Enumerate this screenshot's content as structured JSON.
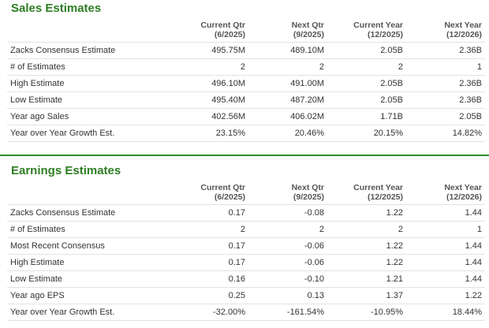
{
  "sales": {
    "title": "Sales Estimates",
    "columns": [
      {
        "line1": "Current Qtr",
        "line2": "(6/2025)"
      },
      {
        "line1": "Next Qtr",
        "line2": "(9/2025)"
      },
      {
        "line1": "Current Year",
        "line2": "(12/2025)"
      },
      {
        "line1": "Next Year",
        "line2": "(12/2026)"
      }
    ],
    "rows": [
      {
        "label": "Zacks Consensus Estimate",
        "values": [
          "495.75M",
          "489.10M",
          "2.05B",
          "2.36B"
        ]
      },
      {
        "label": "# of Estimates",
        "values": [
          "2",
          "2",
          "2",
          "1"
        ]
      },
      {
        "label": "High Estimate",
        "values": [
          "496.10M",
          "491.00M",
          "2.05B",
          "2.36B"
        ]
      },
      {
        "label": "Low Estimate",
        "values": [
          "495.40M",
          "487.20M",
          "2.05B",
          "2.36B"
        ]
      },
      {
        "label": "Year ago Sales",
        "values": [
          "402.56M",
          "406.02M",
          "1.71B",
          "2.05B"
        ]
      },
      {
        "label": "Year over Year Growth Est.",
        "values": [
          "23.15%",
          "20.46%",
          "20.15%",
          "14.82%"
        ]
      }
    ]
  },
  "earnings": {
    "title": "Earnings Estimates",
    "columns": [
      {
        "line1": "Current Qtr",
        "line2": "(6/2025)"
      },
      {
        "line1": "Next Qtr",
        "line2": "(9/2025)"
      },
      {
        "line1": "Current Year",
        "line2": "(12/2025)"
      },
      {
        "line1": "Next Year",
        "line2": "(12/2026)"
      }
    ],
    "rows": [
      {
        "label": "Zacks Consensus Estimate",
        "values": [
          "0.17",
          "-0.08",
          "1.22",
          "1.44"
        ]
      },
      {
        "label": "# of Estimates",
        "values": [
          "2",
          "2",
          "2",
          "1"
        ]
      },
      {
        "label": "Most Recent Consensus",
        "values": [
          "0.17",
          "-0.06",
          "1.22",
          "1.44"
        ]
      },
      {
        "label": "High Estimate",
        "values": [
          "0.17",
          "-0.06",
          "1.22",
          "1.44"
        ]
      },
      {
        "label": "Low Estimate",
        "values": [
          "0.16",
          "-0.10",
          "1.21",
          "1.44"
        ]
      },
      {
        "label": "Year ago EPS",
        "values": [
          "0.25",
          "0.13",
          "1.37",
          "1.22"
        ]
      },
      {
        "label": "Year over Year Growth Est.",
        "values": [
          "-32.00%",
          "-161.54%",
          "-10.95%",
          "18.44%"
        ]
      }
    ]
  },
  "colors": {
    "title_green": "#2e7d23",
    "divider_green": "#2f8f2f",
    "row_border": "#e3e3e3"
  }
}
